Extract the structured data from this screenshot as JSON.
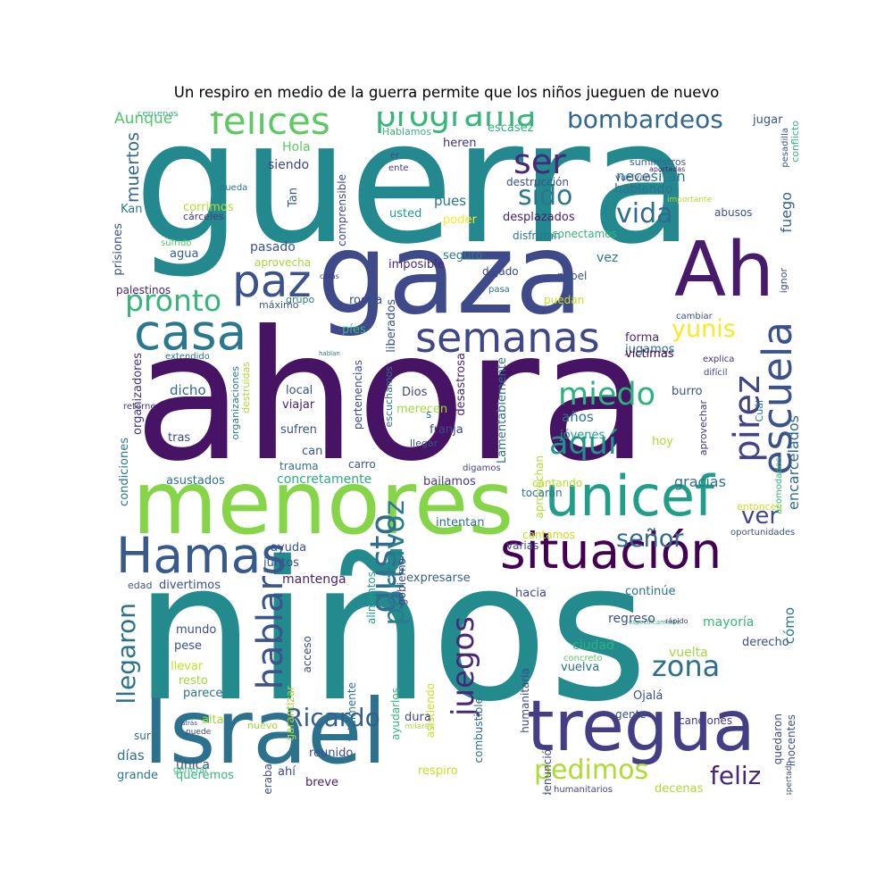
{
  "title": "Un respiro en medio de la guerra permite que los niños jueguen de nuevo",
  "words": [
    {
      "text": "guerra",
      "color": "#23898e"
    },
    {
      "text": "ahora",
      "color": "#471365"
    },
    {
      "text": "niños",
      "color": "#238a8d"
    },
    {
      "text": "gaza",
      "color": "#3e4a89"
    },
    {
      "text": "menores",
      "color": "#86d549"
    },
    {
      "text": "Israel",
      "color": "#2c728e"
    },
    {
      "text": "Ah",
      "color": "#481a6c"
    },
    {
      "text": "tregua",
      "color": "#433e85"
    },
    {
      "text": "situación",
      "color": "#440154"
    },
    {
      "text": "unicef",
      "color": "#1f9e89"
    },
    {
      "text": "Hamas",
      "color": "#38598c"
    },
    {
      "text": "semanas",
      "color": "#3f4788"
    },
    {
      "text": "casa",
      "color": "#2a788e"
    },
    {
      "text": "paz",
      "color": "#3b528b"
    },
    {
      "text": "felices",
      "color": "#5ec962"
    },
    {
      "text": "programa",
      "color": "#35b779"
    },
    {
      "text": "bombardeos",
      "color": "#31688e"
    },
    {
      "text": "ser",
      "color": "#482878"
    },
    {
      "text": "sido",
      "color": "#2a788e"
    },
    {
      "text": "vida",
      "color": "#306a8e"
    },
    {
      "text": "pronto",
      "color": "#35b779"
    },
    {
      "text": "escuela",
      "color": "#3b528b"
    },
    {
      "text": "yunis",
      "color": "#fde725"
    },
    {
      "text": "miedo",
      "color": "#2db27d"
    },
    {
      "text": "aquí",
      "color": "#1f968b"
    },
    {
      "text": "pirez",
      "color": "#414487"
    },
    {
      "text": "hablar",
      "color": "#3a548c"
    },
    {
      "text": "gusto",
      "color": "#2f6c8e"
    },
    {
      "text": "portavoz",
      "color": "#287c8e"
    },
    {
      "text": "Ricardo",
      "color": "#355f8d"
    },
    {
      "text": "juegos",
      "color": "#482878"
    },
    {
      "text": "pedimos",
      "color": "#addc30"
    },
    {
      "text": "zona",
      "color": "#2d708e"
    },
    {
      "text": "feliz",
      "color": "#482677"
    },
    {
      "text": "llegaron",
      "color": "#2c728e"
    },
    {
      "text": "señor",
      "color": "#31688e"
    },
    {
      "text": "ver",
      "color": "#3f4788"
    },
    {
      "text": "muertos",
      "color": "#31688e"
    },
    {
      "text": "Aunque",
      "color": "#52c569"
    },
    {
      "text": "Hola",
      "color": "#5ec962"
    },
    {
      "text": "siendo",
      "color": "#414487"
    },
    {
      "text": "Tan",
      "color": "#38598c"
    },
    {
      "text": "Kan",
      "color": "#2a788e"
    },
    {
      "text": "corrimos",
      "color": "#b5de2b"
    },
    {
      "text": "cárceles",
      "color": "#443a83"
    },
    {
      "text": "pueda",
      "color": "#2a788e"
    },
    {
      "text": "sufrido",
      "color": "#52c569"
    },
    {
      "text": "prisiones",
      "color": "#3b528b"
    },
    {
      "text": "pasado",
      "color": "#3b528b"
    },
    {
      "text": "agua",
      "color": "#35608d"
    },
    {
      "text": "aprovecha",
      "color": "#a0da39"
    },
    {
      "text": "palestinos",
      "color": "#481f70"
    },
    {
      "text": "máximo",
      "color": "#39568c"
    },
    {
      "text": "grupo",
      "color": "#287d8e"
    },
    {
      "text": "comprensible",
      "color": "#3e4989"
    },
    {
      "text": "pues",
      "color": "#2a788e"
    },
    {
      "text": "usted",
      "color": "#1f9e89"
    },
    {
      "text": "poder",
      "color": "#fde725"
    },
    {
      "text": "heren",
      "color": "#46337e"
    },
    {
      "text": "ente",
      "color": "#443a83"
    },
    {
      "text": "er",
      "color": "#3e4a89"
    },
    {
      "text": "Hablamos",
      "color": "#35b779"
    },
    {
      "text": "escasez",
      "color": "#2db27d"
    },
    {
      "text": "destrucción",
      "color": "#3b528b"
    },
    {
      "text": "desplazados",
      "color": "#481f70"
    },
    {
      "text": "disfrutan",
      "color": "#2a788e"
    },
    {
      "text": "conectamos",
      "color": "#35b779"
    },
    {
      "text": "necesitan",
      "color": "#2a788e"
    },
    {
      "text": "hablando",
      "color": "#2d708e"
    },
    {
      "text": "fuego",
      "color": "#355f8d"
    },
    {
      "text": "abusos",
      "color": "#3b528b"
    },
    {
      "text": "suministros",
      "color": "#355f8d"
    },
    {
      "text": "aportadas",
      "color": "#481f70"
    },
    {
      "text": "vuelvan",
      "color": "#3e4989"
    },
    {
      "text": "importante",
      "color": "#b5de2b"
    },
    {
      "text": "jugar",
      "color": "#3b528b"
    },
    {
      "text": "centenas",
      "color": "#2db27d"
    },
    {
      "text": "pesadilla",
      "color": "#3b528b"
    },
    {
      "text": "conflicto",
      "color": "#35b779"
    },
    {
      "text": "imposible",
      "color": "#482878"
    },
    {
      "text": "seguro",
      "color": "#2a788e"
    },
    {
      "text": "dejado",
      "color": "#3e4a89"
    },
    {
      "text": "papel",
      "color": "#3b528b"
    },
    {
      "text": "vez",
      "color": "#2a788e"
    },
    {
      "text": "pasa",
      "color": "#2c728e"
    },
    {
      "text": "puedan",
      "color": "#c8e020"
    },
    {
      "text": "cifras",
      "color": "#443a83"
    },
    {
      "text": "rodea",
      "color": "#3e4a89"
    },
    {
      "text": "liberados",
      "color": "#3b528b"
    },
    {
      "text": "píes",
      "color": "#35b779"
    },
    {
      "text": "cambiar",
      "color": "#3b528b"
    },
    {
      "text": "ignor",
      "color": "#3e4a89"
    },
    {
      "text": "forma",
      "color": "#482878"
    },
    {
      "text": "jugamos",
      "color": "#2c728e"
    },
    {
      "text": "víctimas",
      "color": "#440154"
    },
    {
      "text": "explica",
      "color": "#46337e"
    },
    {
      "text": "difícil",
      "color": "#3e4a89"
    },
    {
      "text": "extendido",
      "color": "#2c728e"
    },
    {
      "text": "hablan",
      "color": "#2a788e"
    },
    {
      "text": "dicho",
      "color": "#306a8e"
    },
    {
      "text": "organizadores",
      "color": "#46337e"
    },
    {
      "text": "organizaciones",
      "color": "#2a788e"
    },
    {
      "text": "destruidas",
      "color": "#addc30"
    },
    {
      "text": "local",
      "color": "#3b528b"
    },
    {
      "text": "viajar",
      "color": "#481f70"
    },
    {
      "text": "escuchamos",
      "color": "#2c728e"
    },
    {
      "text": "pertenencias",
      "color": "#3e4a89"
    },
    {
      "text": "Dios",
      "color": "#414487"
    },
    {
      "text": "merecen",
      "color": "#a0da39"
    },
    {
      "text": "s",
      "color": "#2a788e"
    },
    {
      "text": "franja",
      "color": "#3e4a89"
    },
    {
      "text": "llegar",
      "color": "#3b528b"
    },
    {
      "text": "desastrosa",
      "color": "#482878"
    },
    {
      "text": "Lamentablemente",
      "color": "#2c728e"
    },
    {
      "text": "años",
      "color": "#2c728e"
    },
    {
      "text": "jóvenes",
      "color": "#1f9e89"
    },
    {
      "text": "aprovechan",
      "color": "#addc30"
    },
    {
      "text": "aprovechar",
      "color": "#46337e"
    },
    {
      "text": "burro",
      "color": "#3b528b"
    },
    {
      "text": "Cuál",
      "color": "#2a788e"
    },
    {
      "text": "retorne",
      "color": "#443a83"
    },
    {
      "text": "encarcelados",
      "color": "#31688e"
    },
    {
      "text": "tras",
      "color": "#3e4a89"
    },
    {
      "text": "sufren",
      "color": "#3b528b"
    },
    {
      "text": "can",
      "color": "#3b528b"
    },
    {
      "text": "trauma",
      "color": "#2c728e"
    },
    {
      "text": "carro",
      "color": "#3b528b"
    },
    {
      "text": "hoy",
      "color": "#addc30"
    },
    {
      "text": "acomodados",
      "color": "#35b779"
    },
    {
      "text": "condiciones",
      "color": "#2a788e"
    },
    {
      "text": "asustados",
      "color": "#2c728e"
    },
    {
      "text": "concretamente",
      "color": "#29af7f"
    },
    {
      "text": "digamos",
      "color": "#3e4a89"
    },
    {
      "text": "bailamos",
      "color": "#443a83"
    },
    {
      "text": "cantando",
      "color": "#b5de2b"
    },
    {
      "text": "gracias",
      "color": "#2c728e"
    },
    {
      "text": "tocaron",
      "color": "#2c728e"
    },
    {
      "text": "entonces",
      "color": "#c8e020"
    },
    {
      "text": "intentan",
      "color": "#2c728e"
    },
    {
      "text": "alimentos",
      "color": "#1f9e89"
    },
    {
      "text": "gobierno",
      "color": "#414487"
    },
    {
      "text": "cantamos",
      "color": "#c8e020"
    },
    {
      "text": "varias",
      "color": "#3e4a89"
    },
    {
      "text": "oportunidades",
      "color": "#3b528b"
    },
    {
      "text": "ayuda",
      "color": "#3b528b"
    },
    {
      "text": "juntos",
      "color": "#3b528b"
    },
    {
      "text": "mantenga",
      "color": "#481f70"
    },
    {
      "text": "expresarse",
      "color": "#355f8d"
    },
    {
      "text": "edad",
      "color": "#38598c"
    },
    {
      "text": "divertimos",
      "color": "#3b528b"
    },
    {
      "text": "hacia",
      "color": "#3e4a89"
    },
    {
      "text": "continúe",
      "color": "#2c728e"
    },
    {
      "text": "cómo",
      "color": "#2a788e"
    },
    {
      "text": "específicamente",
      "color": "#35b779"
    },
    {
      "text": "mundo",
      "color": "#3b528b"
    },
    {
      "text": "pese",
      "color": "#3b528b"
    },
    {
      "text": "llevar",
      "color": "#c8e020"
    },
    {
      "text": "resto",
      "color": "#a0da39"
    },
    {
      "text": "parece",
      "color": "#2c728e"
    },
    {
      "text": "garantizar",
      "color": "#a0da39"
    },
    {
      "text": "acceso",
      "color": "#3e4a89"
    },
    {
      "text": "totalmente",
      "color": "#2c728e"
    },
    {
      "text": "ayudarlos",
      "color": "#35b779"
    },
    {
      "text": "asistiendo",
      "color": "#c8e020"
    },
    {
      "text": "combustible",
      "color": "#2c728e"
    },
    {
      "text": "humanitaria",
      "color": "#3e4a89"
    },
    {
      "text": "regreso",
      "color": "#3b528b"
    },
    {
      "text": "mayoría",
      "color": "#35b779"
    },
    {
      "text": "rápido",
      "color": "#443a83"
    },
    {
      "text": "ciudad",
      "color": "#2db27d"
    },
    {
      "text": "concreto",
      "color": "#5ec962"
    },
    {
      "text": "vuelta",
      "color": "#a0da39"
    },
    {
      "text": "vuelva",
      "color": "#2c728e"
    },
    {
      "text": "derecho",
      "color": "#3b528b"
    },
    {
      "text": "quedaron",
      "color": "#3e4a89"
    },
    {
      "text": "Ojalá",
      "color": "#3b528b"
    },
    {
      "text": "gente",
      "color": "#3b528b"
    },
    {
      "text": "canciones",
      "color": "#443a83"
    },
    {
      "text": "inocentes",
      "color": "#3b528b"
    },
    {
      "text": "alta",
      "color": "#a0da39"
    },
    {
      "text": "nuevo",
      "color": "#a0da39"
    },
    {
      "text": "atrás",
      "color": "#3e4a89"
    },
    {
      "text": "puede",
      "color": "#3e4a89"
    },
    {
      "text": "días",
      "color": "#2c728e"
    },
    {
      "text": "sur",
      "color": "#2c728e"
    },
    {
      "text": "única",
      "color": "#3b528b"
    },
    {
      "text": "queremos",
      "color": "#35b779"
    },
    {
      "text": "grande",
      "color": "#2a788e"
    },
    {
      "text": "ahí",
      "color": "#3e4a89"
    },
    {
      "text": "liberaba",
      "color": "#3e4a89"
    },
    {
      "text": "reunido",
      "color": "#3e4a89"
    },
    {
      "text": "breve",
      "color": "#481f70"
    },
    {
      "text": "dura",
      "color": "#3e4a89"
    },
    {
      "text": "milares",
      "color": "#addc30"
    },
    {
      "text": "denunció",
      "color": "#3e4a89"
    },
    {
      "text": "respiro",
      "color": "#c8e020"
    },
    {
      "text": "general",
      "color": "#35b779"
    },
    {
      "text": "despertado",
      "color": "#3b528b"
    },
    {
      "text": "humanitarios",
      "color": "#3e4a89"
    },
    {
      "text": "decenas",
      "color": "#addc30"
    }
  ]
}
